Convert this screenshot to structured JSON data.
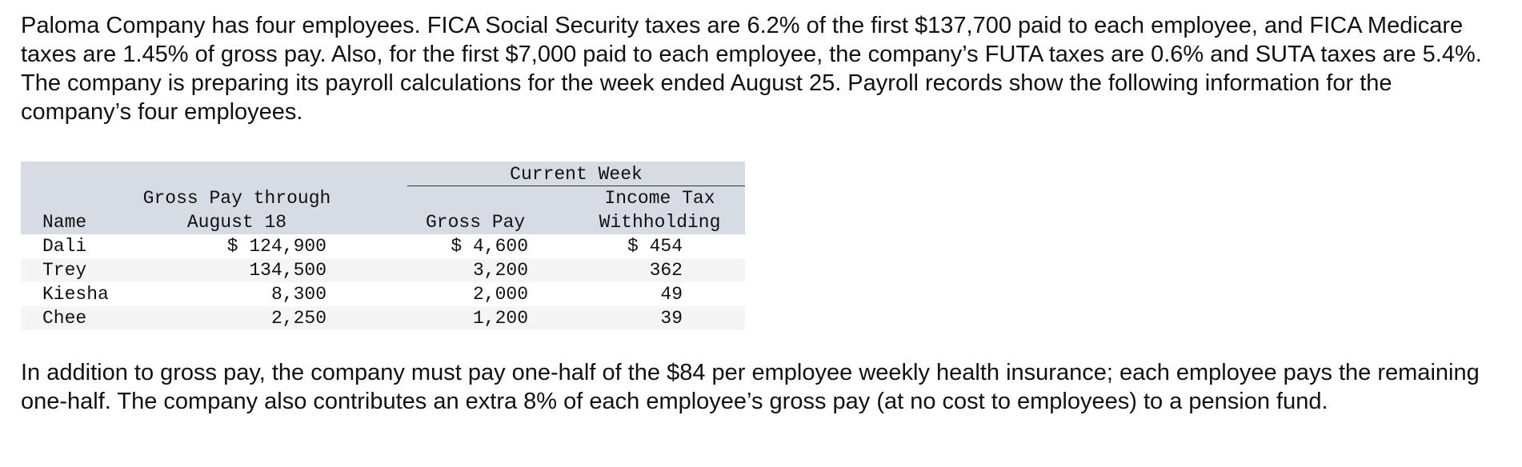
{
  "intro_text": "Paloma Company has four employees. FICA Social Security taxes are 6.2% of the first $137,700 paid to each employee, and FICA Medicare taxes are 1.45% of gross pay. Also, for the first $7,000 paid to each employee, the company’s FUTA taxes are 0.6% and SUTA taxes are 5.4%. The company is preparing its payroll calculations for the week ended August 25. Payroll records show the following information for the company’s four employees.",
  "table": {
    "group_header": "Current Week",
    "headers": {
      "name": "Name",
      "gross_through_line1": "Gross Pay through",
      "gross_through_line2": "August 18",
      "gross_pay": "Gross Pay",
      "income_tax_line1": "Income Tax",
      "income_tax_line2": "Withholding"
    },
    "rows": [
      {
        "name": "Dali",
        "gross_through": "$ 124,900",
        "gross_pay": "$ 4,600",
        "income_tax": "$ 454"
      },
      {
        "name": "Trey",
        "gross_through": "134,500",
        "gross_pay": "3,200",
        "income_tax": "362"
      },
      {
        "name": "Kiesha",
        "gross_through": "8,300",
        "gross_pay": "2,000",
        "income_tax": "49"
      },
      {
        "name": "Chee",
        "gross_through": "2,250",
        "gross_pay": "1,200",
        "income_tax": "39"
      }
    ]
  },
  "outro_text": "In addition to gross pay, the company must pay one-half of the $84 per employee weekly health insurance; each employee pays the remaining one-half. The company also contributes an extra 8% of each employee’s gross pay (at no cost to employees) to a pension fund.",
  "colors": {
    "header_background": "#d6dbe4",
    "alternate_row_background": "#f5f5f5",
    "text": "#111111"
  }
}
